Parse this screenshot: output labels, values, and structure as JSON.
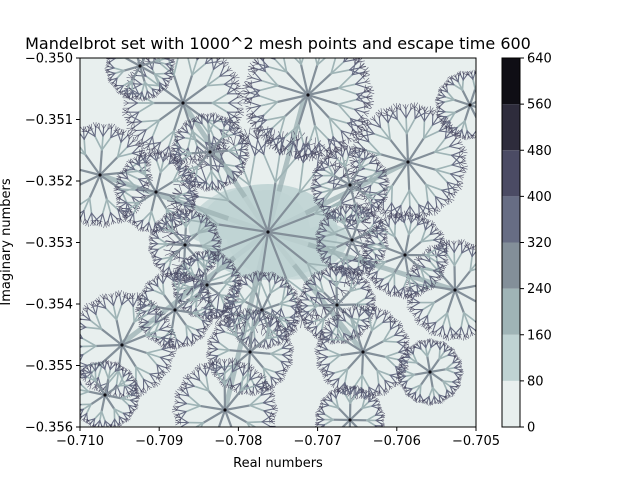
{
  "chart_data": {
    "type": "heatmap",
    "title": "Mandelbrot set with 1000^2 mesh points and escape time 600",
    "xlabel": "Real numbers",
    "ylabel": "Imaginary numbers",
    "xlim": [
      -0.71,
      -0.705
    ],
    "ylim": [
      -0.356,
      -0.35
    ],
    "x_ticks": [
      -0.71,
      -0.709,
      -0.708,
      -0.707,
      -0.706,
      -0.705
    ],
    "x_tick_labels": [
      "−0.710",
      "−0.709",
      "−0.708",
      "−0.707",
      "−0.706",
      "−0.705"
    ],
    "y_ticks": [
      -0.356,
      -0.355,
      -0.354,
      -0.353,
      -0.352,
      -0.351,
      -0.35
    ],
    "y_tick_labels": [
      "−0.356",
      "−0.355",
      "−0.354",
      "−0.353",
      "−0.352",
      "−0.351",
      "−0.350"
    ],
    "mesh_points": 1000,
    "escape_time": 600,
    "grid": false,
    "colorbar": {
      "position": "right",
      "levels": [
        0,
        80,
        160,
        240,
        320,
        400,
        480,
        560,
        640
      ],
      "tick_labels": [
        "0",
        "80",
        "160",
        "240",
        "320",
        "400",
        "480",
        "560",
        "640"
      ],
      "colors": [
        "#e8efee",
        "#bfd3d3",
        "#9fb4b6",
        "#838f99",
        "#676d84",
        "#4b4b64",
        "#2e2c3c",
        "#0f0e15"
      ]
    }
  }
}
